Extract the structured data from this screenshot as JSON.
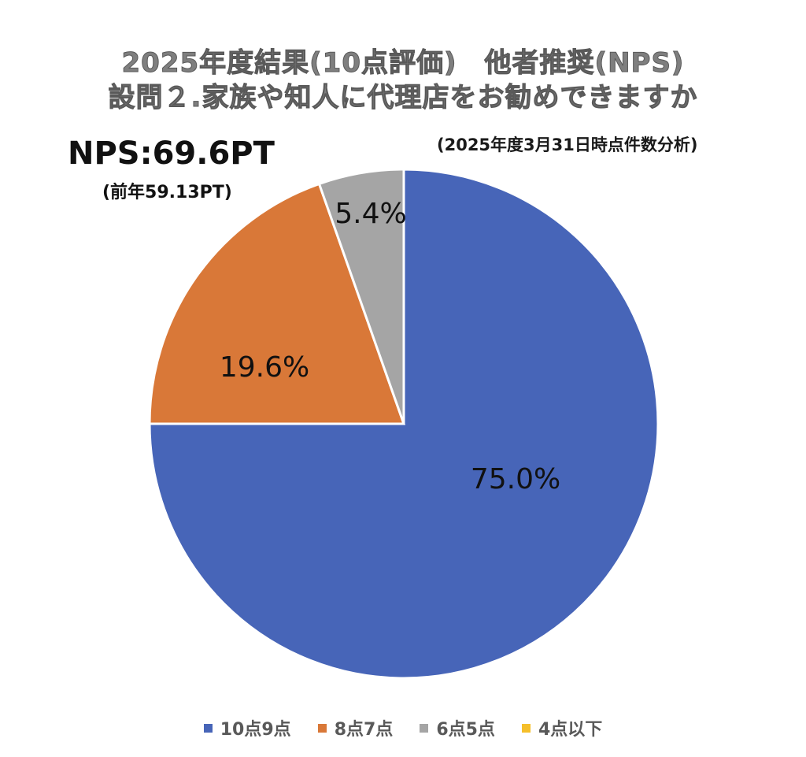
{
  "header": {
    "title_line1": "2025年度結果(10点評価)　他者推奨(NPS)",
    "title_line2": "設問２.家族や知人に代理店をお勧めできますか",
    "date_note": "(2025年度3月31日時点件数分析)",
    "nps_score": "NPS:69.6PT",
    "previous_year": "(前年59.13PT)"
  },
  "chart_data": {
    "type": "pie",
    "title": "2025年度結果(10点評価)　他者推奨(NPS)",
    "categories": [
      "10点9点",
      "8点7点",
      "6点5点",
      "4点以下"
    ],
    "values": [
      75.0,
      19.6,
      5.4,
      0
    ],
    "labels": [
      "75.0%",
      "19.6%",
      "5.4%",
      ""
    ],
    "colors": [
      "#4765b8",
      "#d97838",
      "#a5a5a5",
      "#f5bf2b"
    ],
    "start_angle": "12 o'clock",
    "direction": "clockwise",
    "legend": "bottom"
  }
}
